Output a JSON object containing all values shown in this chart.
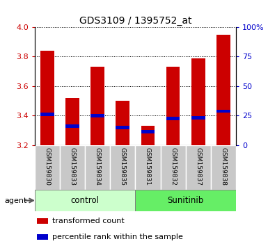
{
  "title": "GDS3109 / 1395752_at",
  "samples": [
    "GSM159830",
    "GSM159833",
    "GSM159834",
    "GSM159835",
    "GSM159831",
    "GSM159832",
    "GSM159837",
    "GSM159838"
  ],
  "bar_tops": [
    3.84,
    3.52,
    3.73,
    3.5,
    3.33,
    3.73,
    3.79,
    3.95
  ],
  "bar_base": 3.2,
  "blue_values": [
    3.41,
    3.33,
    3.4,
    3.32,
    3.29,
    3.38,
    3.385,
    3.43
  ],
  "groups": [
    {
      "label": "control",
      "indices": [
        0,
        1,
        2,
        3
      ],
      "color": "#ccffcc"
    },
    {
      "label": "Sunitinib",
      "indices": [
        4,
        5,
        6,
        7
      ],
      "color": "#66ee66"
    }
  ],
  "ylim": [
    3.2,
    4.0
  ],
  "yticks_left": [
    3.2,
    3.4,
    3.6,
    3.8,
    4.0
  ],
  "yticks_right_vals": [
    0,
    25,
    50,
    75,
    100
  ],
  "yticks_right_labels": [
    "0",
    "25",
    "50",
    "75",
    "100%"
  ],
  "ylabel_left_color": "#cc0000",
  "ylabel_right_color": "#0000cc",
  "bar_color": "#cc0000",
  "blue_color": "#0000cc",
  "background_color": "#ffffff",
  "tick_area_color": "#c8c8c8",
  "agent_label": "agent",
  "legend_red": "transformed count",
  "legend_blue": "percentile rank within the sample",
  "bar_width": 0.55
}
